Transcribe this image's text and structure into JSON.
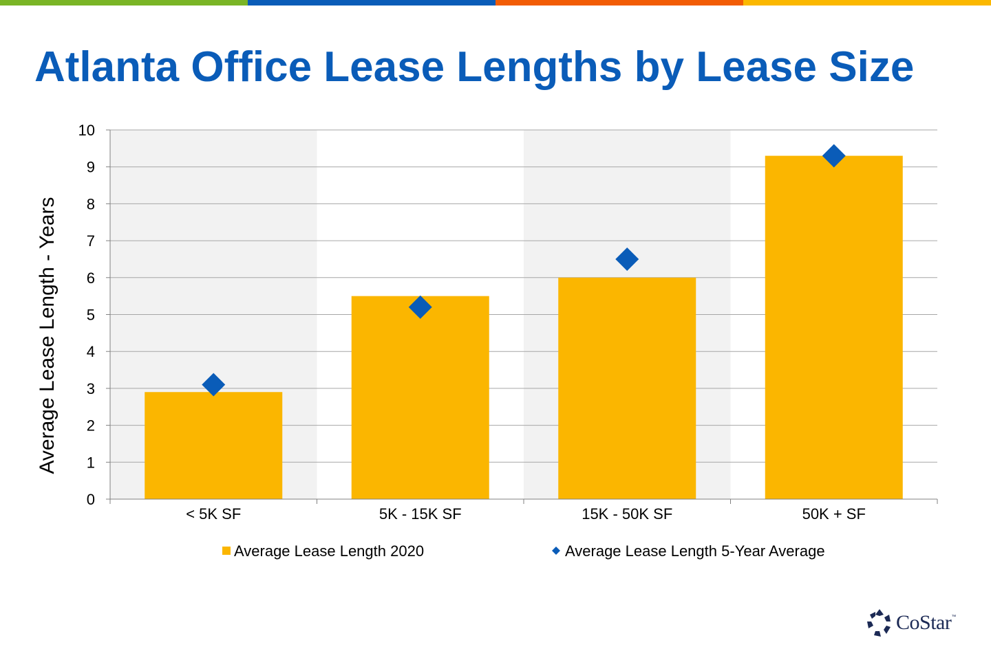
{
  "header": {
    "title": "Atlanta Office Lease Lengths by Lease Size",
    "stripe_colors": [
      "#7ab526",
      "#0a5cb8",
      "#f25c05",
      "#fbb800"
    ]
  },
  "colors": {
    "bar": "#fbb600",
    "marker": "#0a5cb8",
    "band": "#f2f2f2",
    "grid": "#a6a6a6",
    "title": "#0a5cb8"
  },
  "chart_data": {
    "type": "bar",
    "categories": [
      "< 5K SF",
      "5K - 15K SF",
      "15K - 50K SF",
      "50K + SF"
    ],
    "series": [
      {
        "name": "Average Lease Length 2020",
        "type": "bar",
        "values": [
          2.9,
          5.5,
          6.0,
          9.3
        ]
      },
      {
        "name": "Average Lease Length 5-Year Average",
        "type": "scatter",
        "marker": "diamond",
        "values": [
          3.1,
          5.2,
          6.5,
          9.3
        ]
      }
    ],
    "ylabel": "Average Lease Length - Years",
    "xlabel": "",
    "ylim": [
      0,
      10
    ],
    "yticks": [
      "0",
      "1",
      "2",
      "3",
      "4",
      "5",
      "6",
      "7",
      "8",
      "9",
      "10"
    ],
    "grid": true,
    "alternating_background_bands": true,
    "legend_position": "bottom"
  },
  "logo": {
    "name": "costar-logo",
    "text": "CoStar",
    "trademark": "™"
  }
}
